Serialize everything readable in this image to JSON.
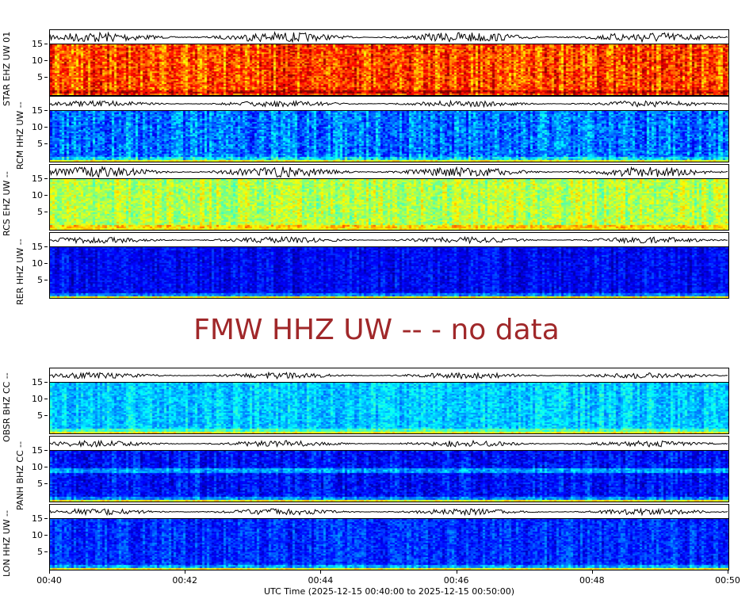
{
  "chart_data": {
    "type": "heatmap",
    "xlabel": "UTC Time (2025-12-15 00:40:00 to 2025-12-15 00:50:00)",
    "x_ticks": [
      "00:40",
      "00:42",
      "00:44",
      "00:46",
      "00:48",
      "00:50"
    ],
    "y_ticks": [
      "5",
      "10",
      "15"
    ],
    "ylim": [
      0,
      15
    ],
    "colormap": "jet",
    "panels": [
      {
        "station": "STAR EHZ UW 01",
        "level": 0.8,
        "spread": 0.12,
        "band": null
      },
      {
        "station": "RCM HHZ UW --",
        "level": 0.24,
        "spread": 0.1,
        "band": null
      },
      {
        "station": "RCS EHZ UW --",
        "level": 0.55,
        "spread": 0.08,
        "band": null
      },
      {
        "station": "RER HHZ UW --",
        "level": 0.12,
        "spread": 0.06,
        "band": null
      },
      {
        "station": "OBSR BHZ CC --",
        "level": 0.33,
        "spread": 0.07,
        "band": null
      },
      {
        "station": "PANH BHZ CC --",
        "level": 0.14,
        "spread": 0.07,
        "band": 9.5
      },
      {
        "station": "LON HHZ UW --",
        "level": 0.17,
        "spread": 0.07,
        "band": null
      }
    ]
  },
  "no_data_message": "FMW HHZ UW -- - no data"
}
